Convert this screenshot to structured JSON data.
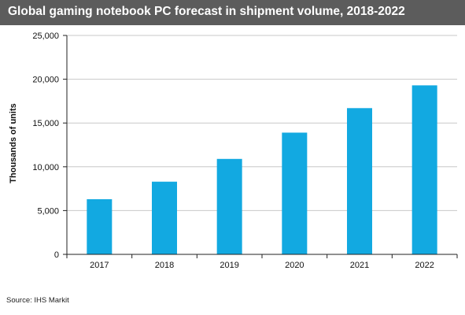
{
  "chart_data": {
    "type": "bar",
    "title": "Global  gaming notebook PC forecast in shipment volume, 2018-2022",
    "xlabel": "",
    "ylabel": "Thousands of units",
    "categories": [
      "2017",
      "2018",
      "2019",
      "2020",
      "2021",
      "2022"
    ],
    "values": [
      6300,
      8300,
      10900,
      13900,
      16700,
      19300
    ],
    "ylim": [
      0,
      25000
    ],
    "yticks": [
      0,
      5000,
      10000,
      15000,
      20000,
      25000
    ],
    "ytick_labels": [
      "0",
      "5,000",
      "10,000",
      "15,000",
      "20,000",
      "25,000"
    ],
    "grid": true,
    "legend": "none",
    "bar_color": "#12a9e1",
    "source": "Source:  IHS Markit"
  },
  "colors": {
    "title_bar": "#5c5c5c",
    "bar": "#12a9e1",
    "grid": "#c8c8c8"
  }
}
